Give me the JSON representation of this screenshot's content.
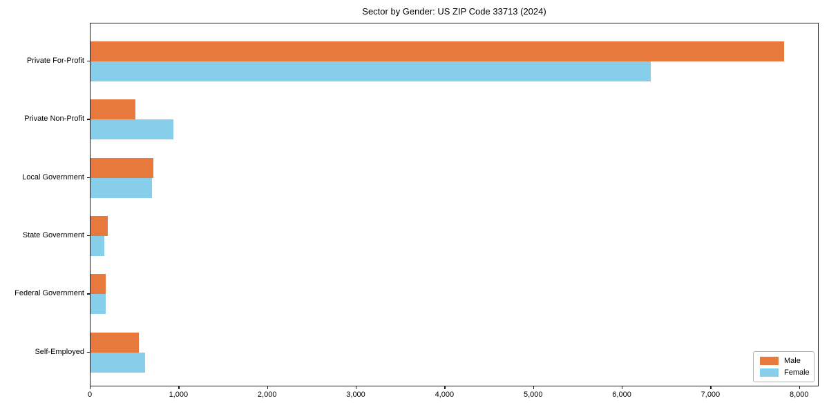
{
  "chart_data": {
    "type": "bar",
    "orientation": "horizontal",
    "title": "Sector by Gender: US ZIP Code 33713 (2024)",
    "categories": [
      "Private For-Profit",
      "Private Non-Profit",
      "Local Government",
      "State Government",
      "Federal Government",
      "Self-Employed"
    ],
    "series": [
      {
        "name": "Male",
        "color": "#e8793d",
        "values": [
          7825,
          510,
          710,
          195,
          170,
          545
        ]
      },
      {
        "name": "Female",
        "color": "#87ceeb",
        "values": [
          6320,
          935,
          690,
          155,
          170,
          615
        ]
      }
    ],
    "xlabel": "",
    "ylabel": "",
    "xlim": [
      0,
      8220
    ],
    "xtick_values": [
      0,
      1000,
      2000,
      3000,
      4000,
      5000,
      6000,
      7000,
      8000
    ],
    "xtick_labels": [
      "0",
      "1,000",
      "2,000",
      "3,000",
      "4,000",
      "5,000",
      "6,000",
      "7,000",
      "8,000"
    ],
    "grid": false,
    "legend": {
      "position": "lower right",
      "entries": [
        "Male",
        "Female"
      ]
    },
    "colors": {
      "background": "#ffffff",
      "axis": "#1a1a1a"
    }
  }
}
